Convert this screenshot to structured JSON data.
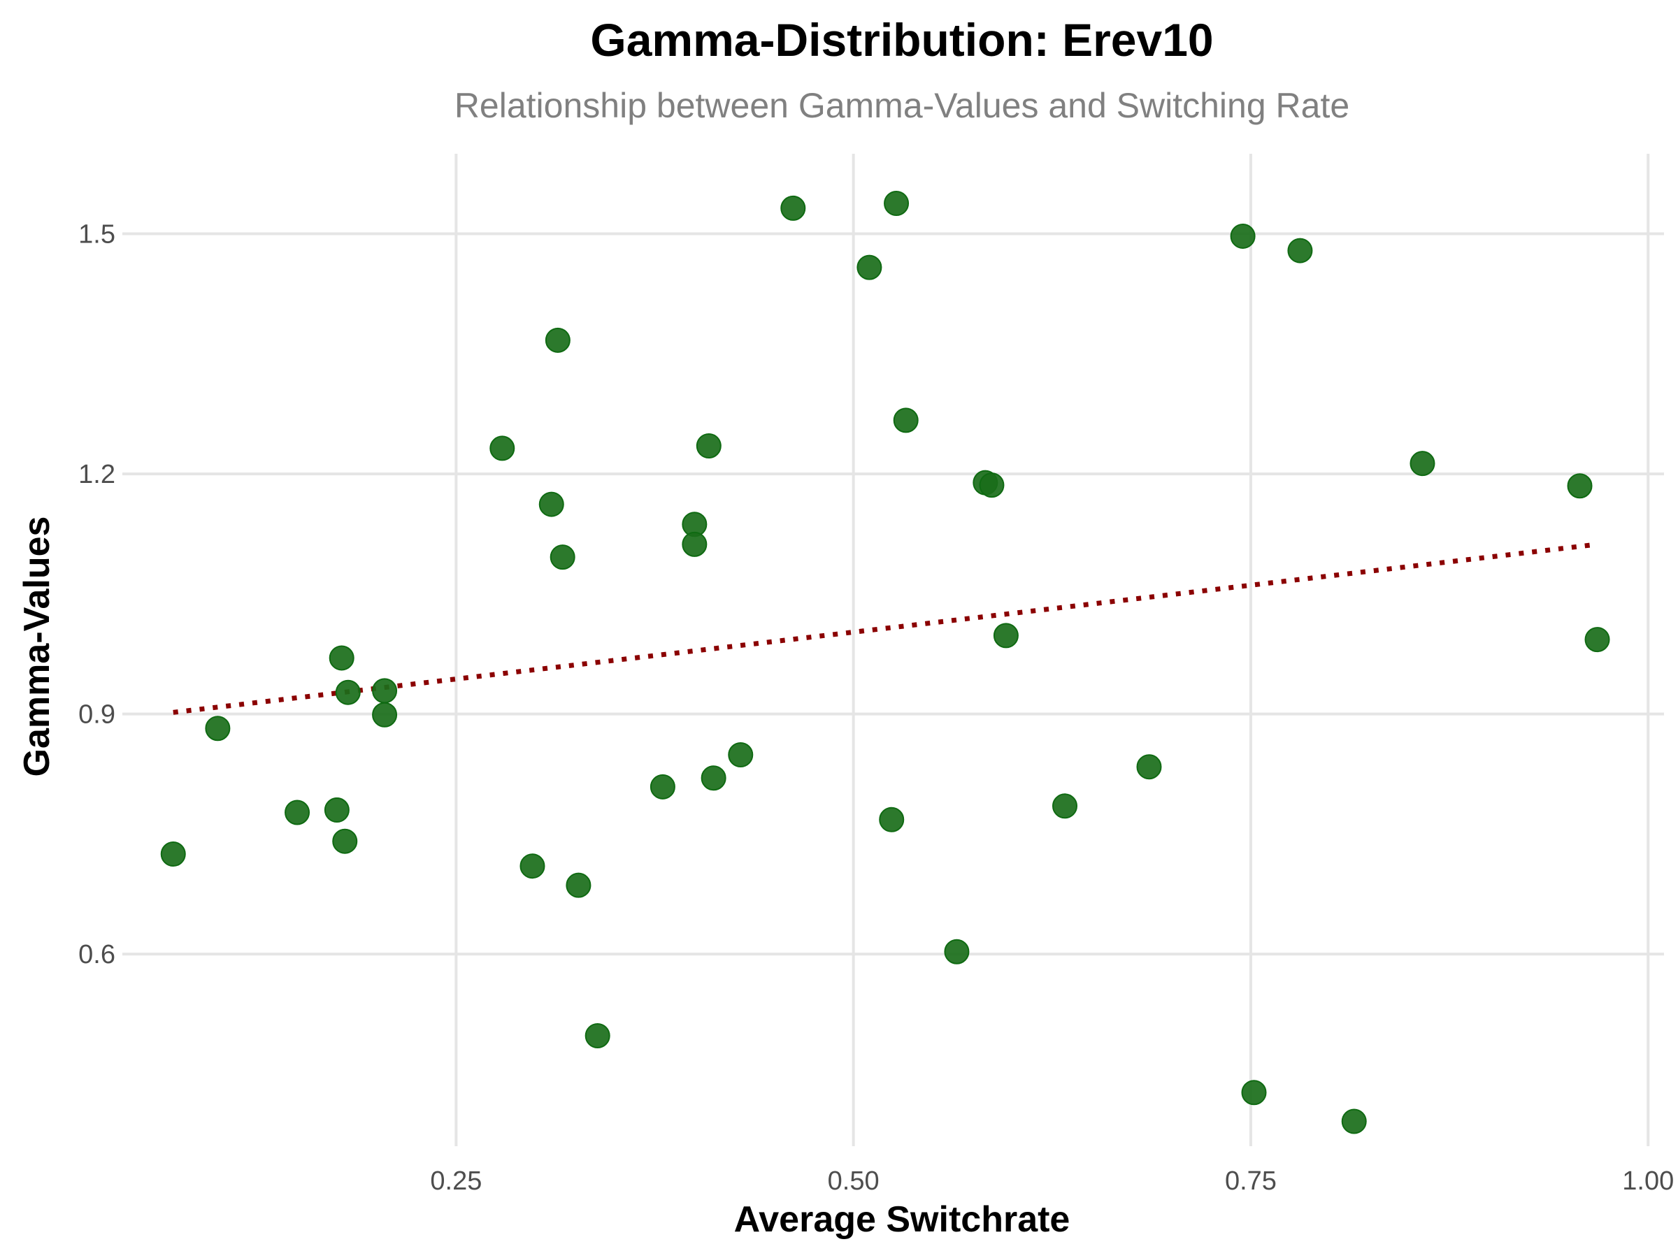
{
  "chart_data": {
    "type": "scatter",
    "title": "Gamma-Distribution: Erev10",
    "subtitle": "Relationship between Gamma-Values and Switching Rate",
    "xlabel": "Average Switchrate",
    "ylabel": "Gamma-Values",
    "xlim": [
      0.04,
      1.01
    ],
    "ylim": [
      0.36,
      1.6
    ],
    "x_ticks": [
      0.25,
      0.5,
      0.75,
      1.0
    ],
    "x_tick_labels": [
      "0.25",
      "0.50",
      "0.75",
      "1.00"
    ],
    "y_ticks": [
      0.6,
      0.9,
      1.2,
      1.5
    ],
    "y_tick_labels": [
      "0.6",
      "0.9",
      "1.2",
      "1.5"
    ],
    "grid": true,
    "legend": "none",
    "point_color": "#1a6e1a",
    "trend_color": "#8b0000",
    "points": [
      {
        "x": 0.072,
        "y": 0.725
      },
      {
        "x": 0.1,
        "y": 0.882
      },
      {
        "x": 0.15,
        "y": 0.777
      },
      {
        "x": 0.175,
        "y": 0.78
      },
      {
        "x": 0.178,
        "y": 0.97
      },
      {
        "x": 0.18,
        "y": 0.741
      },
      {
        "x": 0.182,
        "y": 0.927
      },
      {
        "x": 0.205,
        "y": 0.929
      },
      {
        "x": 0.205,
        "y": 0.899
      },
      {
        "x": 0.279,
        "y": 1.232
      },
      {
        "x": 0.298,
        "y": 0.71
      },
      {
        "x": 0.31,
        "y": 1.162
      },
      {
        "x": 0.314,
        "y": 1.367
      },
      {
        "x": 0.317,
        "y": 1.096
      },
      {
        "x": 0.327,
        "y": 0.686
      },
      {
        "x": 0.339,
        "y": 0.498
      },
      {
        "x": 0.38,
        "y": 0.809
      },
      {
        "x": 0.4,
        "y": 1.137
      },
      {
        "x": 0.4,
        "y": 1.112
      },
      {
        "x": 0.409,
        "y": 1.235
      },
      {
        "x": 0.412,
        "y": 0.82
      },
      {
        "x": 0.429,
        "y": 0.849
      },
      {
        "x": 0.462,
        "y": 1.532
      },
      {
        "x": 0.51,
        "y": 1.458
      },
      {
        "x": 0.524,
        "y": 0.768
      },
      {
        "x": 0.527,
        "y": 1.538
      },
      {
        "x": 0.533,
        "y": 1.267
      },
      {
        "x": 0.565,
        "y": 0.603
      },
      {
        "x": 0.583,
        "y": 1.189
      },
      {
        "x": 0.587,
        "y": 1.186
      },
      {
        "x": 0.596,
        "y": 0.998
      },
      {
        "x": 0.633,
        "y": 0.785
      },
      {
        "x": 0.686,
        "y": 0.834
      },
      {
        "x": 0.745,
        "y": 1.497
      },
      {
        "x": 0.752,
        "y": 0.427
      },
      {
        "x": 0.781,
        "y": 1.479
      },
      {
        "x": 0.815,
        "y": 0.391
      },
      {
        "x": 0.858,
        "y": 1.213
      },
      {
        "x": 0.957,
        "y": 1.185
      },
      {
        "x": 0.968,
        "y": 0.993
      }
    ],
    "trend_line": {
      "style": "dotted",
      "x": [
        0.072,
        0.968
      ],
      "y": [
        0.902,
        1.112
      ]
    }
  }
}
